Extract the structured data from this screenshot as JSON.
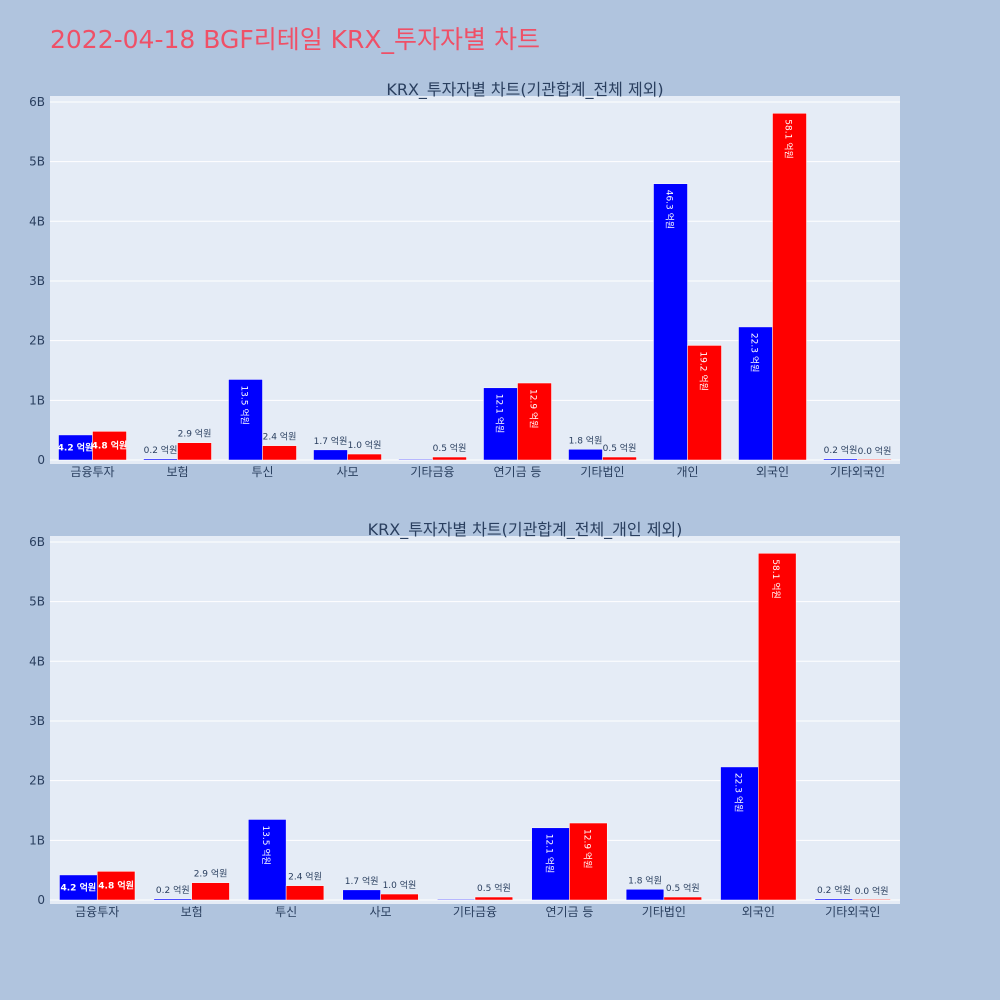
{
  "page": {
    "title": "2022-04-18 BGF리테일 KRX_투자자별 차트"
  },
  "colors": {
    "buy": "#0000ff",
    "sell": "#ff0000",
    "plot_bg": "#e5ecf6",
    "paper_bg": "#b0c4de",
    "title": "#ef5067"
  },
  "chart_data": [
    {
      "type": "bar",
      "title": "KRX_투자자별 차트(기관합계_전체 제외)",
      "categories": [
        "금융투자",
        "보험",
        "투신",
        "사모",
        "기타금융",
        "연기금 등",
        "기타법인",
        "개인",
        "외국인",
        "기타외국인"
      ],
      "series": [
        {
          "values": [
            0.42,
            0.02,
            1.35,
            0.17,
            0.0,
            1.21,
            0.18,
            4.63,
            2.23,
            0.02
          ],
          "labels": [
            "4.2 억원",
            "0.2 억원",
            "13.5 억원",
            "1.7 억원",
            "",
            "12.1 억원",
            "1.8 억원",
            "46.3 억원",
            "22.3 억원",
            "0.2 억원"
          ]
        },
        {
          "values": [
            0.48,
            0.29,
            0.24,
            0.1,
            0.05,
            1.29,
            0.05,
            1.92,
            5.81,
            0.0
          ],
          "labels": [
            "4.8 억원",
            "2.9 억원",
            "2.4 억원",
            "1.0 억원",
            "0.5 억원",
            "12.9 억원",
            "0.5 억원",
            "19.2 억원",
            "58.1 억원",
            "0.0 억원"
          ]
        }
      ],
      "ylim": [
        0,
        6.1
      ],
      "yticks": [
        0,
        1,
        2,
        3,
        4,
        5,
        6
      ],
      "ytick_labels": [
        "0",
        "1B",
        "2B",
        "3B",
        "4B",
        "5B",
        "6B"
      ],
      "grid": true
    },
    {
      "type": "bar",
      "title": "KRX_투자자별 차트(기관합계_전체_개인 제외)",
      "categories": [
        "금융투자",
        "보험",
        "투신",
        "사모",
        "기타금융",
        "연기금 등",
        "기타법인",
        "외국인",
        "기타외국인"
      ],
      "series": [
        {
          "values": [
            0.42,
            0.02,
            1.35,
            0.17,
            0.0,
            1.21,
            0.18,
            2.23,
            0.02
          ],
          "labels": [
            "4.2 억원",
            "0.2 억원",
            "13.5 억원",
            "1.7 억원",
            "",
            "12.1 억원",
            "1.8 억원",
            "22.3 억원",
            "0.2 억원"
          ]
        },
        {
          "values": [
            0.48,
            0.29,
            0.24,
            0.1,
            0.05,
            1.29,
            0.05,
            5.81,
            0.0
          ],
          "labels": [
            "4.8 억원",
            "2.9 억원",
            "2.4 억원",
            "1.0 억원",
            "0.5 억원",
            "12.9 억원",
            "0.5 억원",
            "58.1 억원",
            "0.0 억원"
          ]
        }
      ],
      "ylim": [
        0,
        6.1
      ],
      "yticks": [
        0,
        1,
        2,
        3,
        4,
        5,
        6
      ],
      "ytick_labels": [
        "0",
        "1B",
        "2B",
        "3B",
        "4B",
        "5B",
        "6B"
      ],
      "grid": true
    }
  ]
}
